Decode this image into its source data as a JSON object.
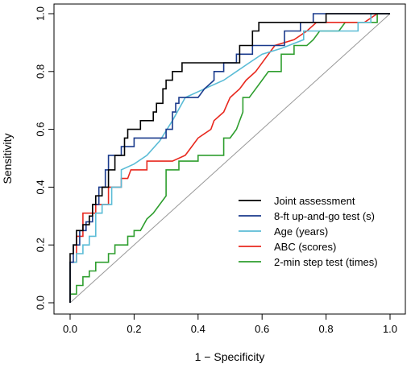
{
  "chart_data": {
    "type": "line",
    "xlabel": "1 − Specificity",
    "ylabel": "Sensitivity",
    "xlim": [
      0,
      1
    ],
    "ylim": [
      0,
      1
    ],
    "x_ticks": [
      "0.0",
      "0.2",
      "0.4",
      "0.6",
      "0.8",
      "1.0"
    ],
    "y_ticks": [
      "0.0",
      "0.2",
      "0.4",
      "0.6",
      "0.8",
      "1.0"
    ],
    "grid": false,
    "legend_position": "bottom-right",
    "reference_line": {
      "color": "#999999",
      "from": [
        0,
        0
      ],
      "to": [
        1,
        1
      ]
    },
    "series": [
      {
        "name": "Joint assessment",
        "color": "#000000",
        "points": [
          [
            0,
            0
          ],
          [
            0,
            0.17
          ],
          [
            0.01,
            0.17
          ],
          [
            0.01,
            0.2
          ],
          [
            0.02,
            0.2
          ],
          [
            0.02,
            0.25
          ],
          [
            0.04,
            0.25
          ],
          [
            0.04,
            0.27
          ],
          [
            0.06,
            0.27
          ],
          [
            0.06,
            0.3
          ],
          [
            0.07,
            0.3
          ],
          [
            0.07,
            0.34
          ],
          [
            0.08,
            0.34
          ],
          [
            0.08,
            0.37
          ],
          [
            0.1,
            0.37
          ],
          [
            0.1,
            0.4
          ],
          [
            0.12,
            0.4
          ],
          [
            0.12,
            0.46
          ],
          [
            0.14,
            0.46
          ],
          [
            0.14,
            0.51
          ],
          [
            0.16,
            0.51
          ],
          [
            0.17,
            0.51
          ],
          [
            0.17,
            0.57
          ],
          [
            0.18,
            0.57
          ],
          [
            0.18,
            0.6
          ],
          [
            0.22,
            0.6
          ],
          [
            0.22,
            0.63
          ],
          [
            0.26,
            0.63
          ],
          [
            0.26,
            0.66
          ],
          [
            0.27,
            0.66
          ],
          [
            0.27,
            0.69
          ],
          [
            0.29,
            0.69
          ],
          [
            0.29,
            0.74
          ],
          [
            0.3,
            0.74
          ],
          [
            0.3,
            0.77
          ],
          [
            0.32,
            0.77
          ],
          [
            0.32,
            0.8
          ],
          [
            0.35,
            0.8
          ],
          [
            0.35,
            0.83
          ],
          [
            0.53,
            0.83
          ],
          [
            0.53,
            0.89
          ],
          [
            0.57,
            0.89
          ],
          [
            0.57,
            0.94
          ],
          [
            0.59,
            0.94
          ],
          [
            0.59,
            0.97
          ],
          [
            0.8,
            0.97
          ],
          [
            0.8,
            1.0
          ],
          [
            1.0,
            1.0
          ]
        ]
      },
      {
        "name": "8-ft up-and-go test (s)",
        "color": "#1a3a8c",
        "points": [
          [
            0,
            0
          ],
          [
            0,
            0.14
          ],
          [
            0.01,
            0.14
          ],
          [
            0.01,
            0.2
          ],
          [
            0.03,
            0.2
          ],
          [
            0.03,
            0.25
          ],
          [
            0.05,
            0.25
          ],
          [
            0.05,
            0.28
          ],
          [
            0.07,
            0.28
          ],
          [
            0.07,
            0.34
          ],
          [
            0.09,
            0.34
          ],
          [
            0.09,
            0.4
          ],
          [
            0.11,
            0.4
          ],
          [
            0.11,
            0.46
          ],
          [
            0.12,
            0.46
          ],
          [
            0.12,
            0.51
          ],
          [
            0.16,
            0.51
          ],
          [
            0.16,
            0.54
          ],
          [
            0.2,
            0.54
          ],
          [
            0.2,
            0.57
          ],
          [
            0.3,
            0.57
          ],
          [
            0.3,
            0.6
          ],
          [
            0.32,
            0.6
          ],
          [
            0.32,
            0.66
          ],
          [
            0.33,
            0.66
          ],
          [
            0.33,
            0.69
          ],
          [
            0.34,
            0.69
          ],
          [
            0.34,
            0.71
          ],
          [
            0.4,
            0.71
          ],
          [
            0.42,
            0.74
          ],
          [
            0.45,
            0.77
          ],
          [
            0.45,
            0.8
          ],
          [
            0.48,
            0.8
          ],
          [
            0.48,
            0.83
          ],
          [
            0.52,
            0.83
          ],
          [
            0.52,
            0.86
          ],
          [
            0.57,
            0.86
          ],
          [
            0.57,
            0.89
          ],
          [
            0.67,
            0.89
          ],
          [
            0.67,
            0.94
          ],
          [
            0.72,
            0.94
          ],
          [
            0.72,
            0.97
          ],
          [
            0.76,
            0.97
          ],
          [
            0.76,
            1.0
          ],
          [
            1.0,
            1.0
          ]
        ]
      },
      {
        "name": "Age (years)",
        "color": "#5bbcd6",
        "points": [
          [
            0,
            0
          ],
          [
            0,
            0.14
          ],
          [
            0.02,
            0.14
          ],
          [
            0.02,
            0.17
          ],
          [
            0.04,
            0.17
          ],
          [
            0.04,
            0.2
          ],
          [
            0.06,
            0.2
          ],
          [
            0.06,
            0.23
          ],
          [
            0.08,
            0.23
          ],
          [
            0.08,
            0.31
          ],
          [
            0.1,
            0.31
          ],
          [
            0.1,
            0.34
          ],
          [
            0.13,
            0.34
          ],
          [
            0.13,
            0.4
          ],
          [
            0.16,
            0.4
          ],
          [
            0.16,
            0.46
          ],
          [
            0.2,
            0.48
          ],
          [
            0.24,
            0.51
          ],
          [
            0.28,
            0.56
          ],
          [
            0.32,
            0.63
          ],
          [
            0.36,
            0.71
          ],
          [
            0.42,
            0.74
          ],
          [
            0.48,
            0.77
          ],
          [
            0.52,
            0.8
          ],
          [
            0.56,
            0.83
          ],
          [
            0.6,
            0.86
          ],
          [
            0.66,
            0.88
          ],
          [
            0.73,
            0.91
          ],
          [
            0.73,
            0.94
          ],
          [
            0.9,
            0.94
          ],
          [
            0.9,
            0.97
          ],
          [
            0.94,
            0.97
          ],
          [
            0.94,
            1.0
          ],
          [
            1.0,
            1.0
          ]
        ]
      },
      {
        "name": "ABC (scores)",
        "color": "#e8281e",
        "points": [
          [
            0,
            0
          ],
          [
            0,
            0.14
          ],
          [
            0.02,
            0.14
          ],
          [
            0.02,
            0.23
          ],
          [
            0.04,
            0.23
          ],
          [
            0.04,
            0.31
          ],
          [
            0.08,
            0.31
          ],
          [
            0.08,
            0.34
          ],
          [
            0.12,
            0.34
          ],
          [
            0.12,
            0.4
          ],
          [
            0.16,
            0.4
          ],
          [
            0.16,
            0.43
          ],
          [
            0.18,
            0.43
          ],
          [
            0.19,
            0.46
          ],
          [
            0.24,
            0.46
          ],
          [
            0.24,
            0.49
          ],
          [
            0.3,
            0.49
          ],
          [
            0.32,
            0.49
          ],
          [
            0.36,
            0.51
          ],
          [
            0.38,
            0.54
          ],
          [
            0.4,
            0.57
          ],
          [
            0.44,
            0.6
          ],
          [
            0.45,
            0.63
          ],
          [
            0.48,
            0.66
          ],
          [
            0.5,
            0.71
          ],
          [
            0.53,
            0.74
          ],
          [
            0.55,
            0.77
          ],
          [
            0.58,
            0.8
          ],
          [
            0.62,
            0.86
          ],
          [
            0.64,
            0.89
          ],
          [
            0.7,
            0.91
          ],
          [
            0.74,
            0.94
          ],
          [
            0.77,
            0.97
          ],
          [
            0.92,
            0.97
          ],
          [
            0.96,
            1.0
          ],
          [
            1.0,
            1.0
          ]
        ]
      },
      {
        "name": "2-min step test (times)",
        "color": "#2e9e2e",
        "points": [
          [
            0,
            0
          ],
          [
            0,
            0.03
          ],
          [
            0.02,
            0.03
          ],
          [
            0.02,
            0.06
          ],
          [
            0.04,
            0.06
          ],
          [
            0.04,
            0.09
          ],
          [
            0.06,
            0.09
          ],
          [
            0.06,
            0.11
          ],
          [
            0.08,
            0.11
          ],
          [
            0.08,
            0.14
          ],
          [
            0.12,
            0.14
          ],
          [
            0.12,
            0.17
          ],
          [
            0.14,
            0.17
          ],
          [
            0.14,
            0.2
          ],
          [
            0.18,
            0.2
          ],
          [
            0.18,
            0.23
          ],
          [
            0.2,
            0.23
          ],
          [
            0.2,
            0.25
          ],
          [
            0.22,
            0.25
          ],
          [
            0.24,
            0.29
          ],
          [
            0.26,
            0.31
          ],
          [
            0.28,
            0.34
          ],
          [
            0.3,
            0.37
          ],
          [
            0.3,
            0.46
          ],
          [
            0.34,
            0.46
          ],
          [
            0.34,
            0.49
          ],
          [
            0.4,
            0.49
          ],
          [
            0.4,
            0.51
          ],
          [
            0.48,
            0.51
          ],
          [
            0.48,
            0.57
          ],
          [
            0.5,
            0.57
          ],
          [
            0.52,
            0.6
          ],
          [
            0.54,
            0.66
          ],
          [
            0.54,
            0.71
          ],
          [
            0.56,
            0.71
          ],
          [
            0.58,
            0.74
          ],
          [
            0.6,
            0.77
          ],
          [
            0.62,
            0.8
          ],
          [
            0.66,
            0.8
          ],
          [
            0.66,
            0.86
          ],
          [
            0.7,
            0.86
          ],
          [
            0.7,
            0.89
          ],
          [
            0.74,
            0.89
          ],
          [
            0.76,
            0.91
          ],
          [
            0.78,
            0.94
          ],
          [
            0.84,
            0.94
          ],
          [
            0.86,
            0.97
          ],
          [
            0.96,
            0.97
          ],
          [
            0.96,
            1.0
          ],
          [
            1.0,
            1.0
          ]
        ]
      }
    ]
  }
}
